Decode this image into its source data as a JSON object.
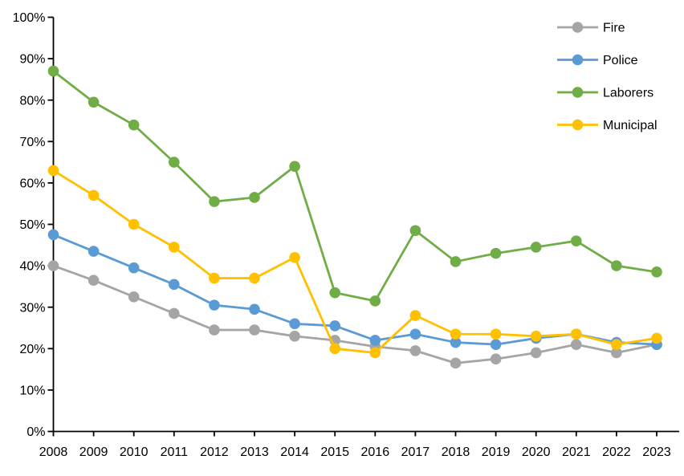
{
  "chart_data": {
    "type": "line",
    "title": "",
    "x_axis_label": "",
    "y_axis_label": "",
    "x_categories": [
      "2008",
      "2009",
      "2010",
      "2011",
      "2012",
      "2013",
      "2014",
      "2015",
      "2016",
      "2017",
      "2018",
      "2019",
      "2020",
      "2021",
      "2022",
      "2023"
    ],
    "y_axis": {
      "min": 0,
      "max": 100,
      "step": 10,
      "tick_labels": [
        "0%",
        "10%",
        "20%",
        "30%",
        "40%",
        "50%",
        "60%",
        "70%",
        "80%",
        "90%",
        "100%"
      ]
    },
    "grid": false,
    "legend_position": "top-right",
    "axis_color": "#000000",
    "background_color": "#FFFFFF",
    "series": [
      {
        "name": "Fire",
        "color": "#A5A5A5",
        "values": [
          40,
          36.5,
          32.5,
          28.5,
          24.5,
          24.5,
          23,
          22,
          20.5,
          19.5,
          16.5,
          17.5,
          19,
          21,
          19,
          21
        ]
      },
      {
        "name": "Police",
        "color": "#5B9BD5",
        "values": [
          47.5,
          43.5,
          39.5,
          35.5,
          30.5,
          29.5,
          26,
          25.5,
          22,
          23.5,
          21.5,
          21,
          22.5,
          23.5,
          21.5,
          21
        ]
      },
      {
        "name": "Laborers",
        "color": "#70AD47",
        "values": [
          87,
          79.5,
          74,
          65,
          55.5,
          56.5,
          64,
          33.5,
          31.5,
          48.5,
          41,
          43,
          44.5,
          46,
          40,
          38.5
        ]
      },
      {
        "name": "Municipal",
        "color": "#FFC000",
        "values": [
          63,
          57,
          50,
          44.5,
          37,
          37,
          42,
          20,
          19,
          28,
          23.5,
          23.5,
          23,
          23.5,
          21,
          22.5
        ]
      }
    ]
  }
}
